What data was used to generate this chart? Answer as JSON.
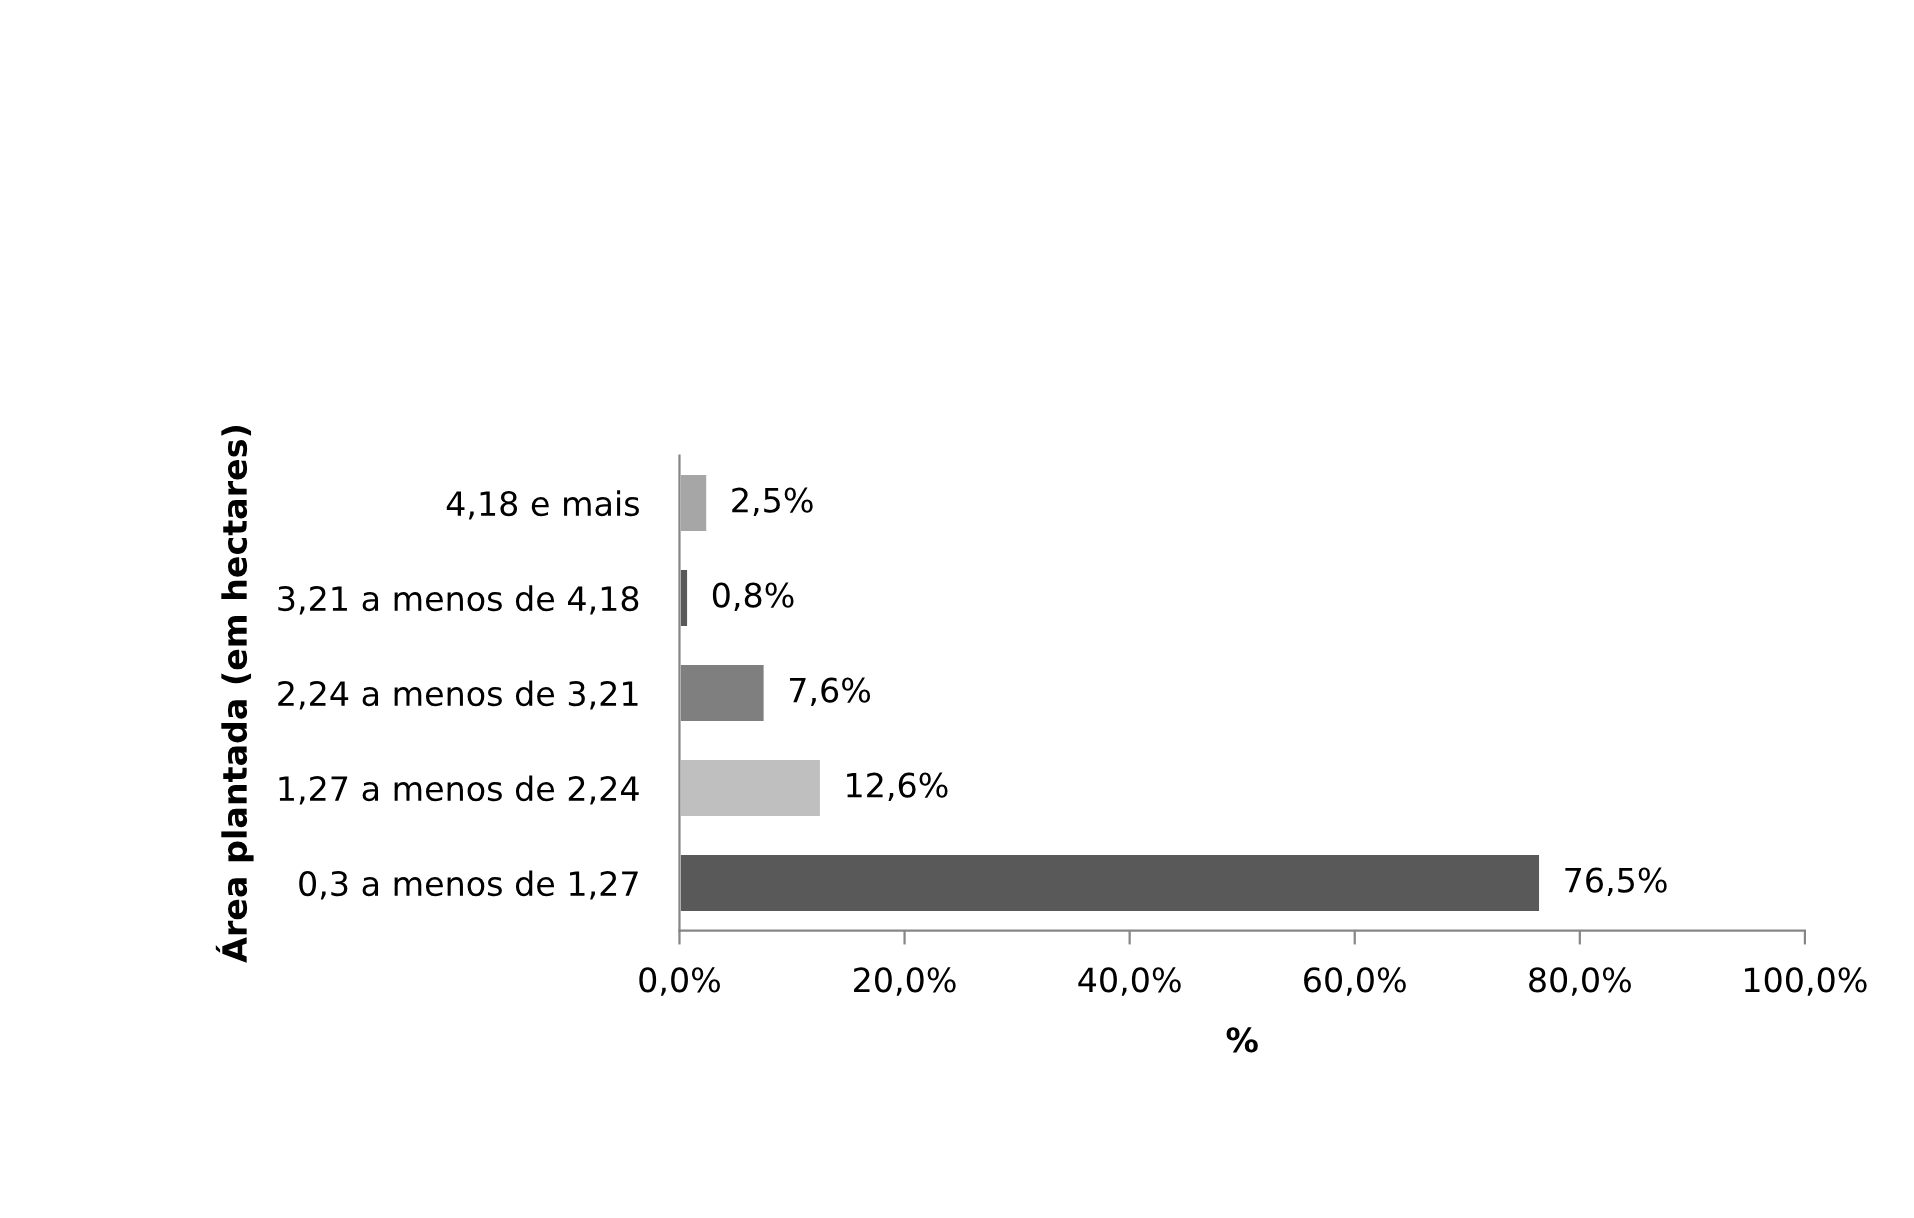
{
  "chart_data": {
    "type": "bar",
    "orientation": "horizontal",
    "ylabel": "Área plantada (em hectares)",
    "xlabel": "%",
    "categories": [
      "4,18 e mais",
      "3,21 a menos de 4,18",
      "2,24 a menos de 3,21",
      "1,27 a menos de 2,24",
      "0,3 a menos de 1,27"
    ],
    "values": [
      2.5,
      0.8,
      7.6,
      12.6,
      76.5
    ],
    "colors": [
      "#a6a6a6",
      "#595959",
      "#7f7f7f",
      "#bfbfbf",
      "#595959"
    ],
    "value_labels": [
      "2,5%",
      "0,8%",
      "7,6%",
      "12,6%",
      "76,5%"
    ],
    "xlim": [
      0,
      100
    ],
    "xticks": [
      {
        "value": 0,
        "label": "0,0%"
      },
      {
        "value": 20,
        "label": "20,0%"
      },
      {
        "value": 40,
        "label": "40,0%"
      },
      {
        "value": 60,
        "label": "60,0%"
      },
      {
        "value": 80,
        "label": "80,0%"
      },
      {
        "value": 100,
        "label": "100,0%"
      }
    ],
    "grid": false,
    "legend": false
  }
}
